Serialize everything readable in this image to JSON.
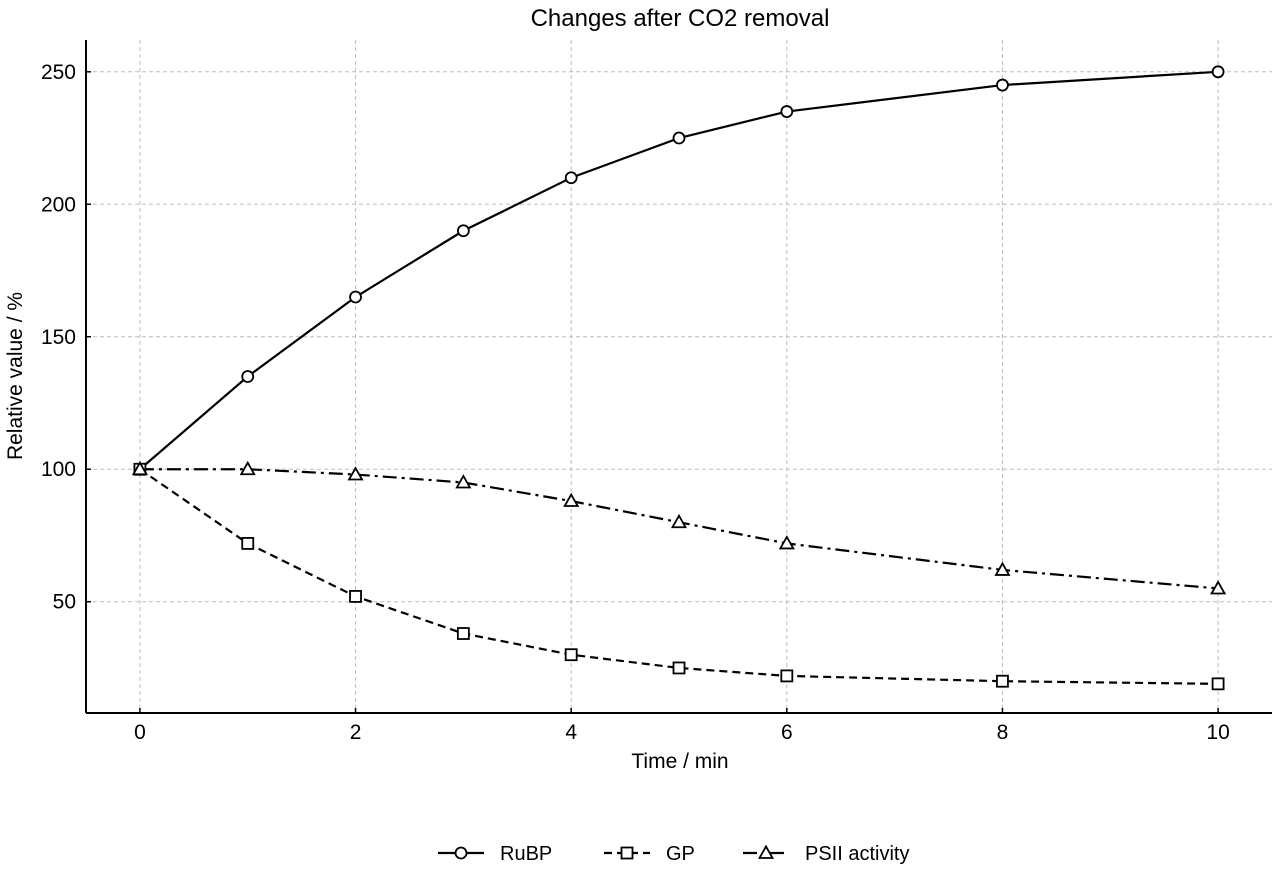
{
  "chart_data": {
    "type": "line",
    "title": "Changes after CO2 removal",
    "xlabel": "Time / min",
    "ylabel": "Relative value / %",
    "xlim": [
      -0.5,
      10.5
    ],
    "ylim": [
      8,
      262
    ],
    "xticks": [
      0,
      2,
      4,
      6,
      8,
      10
    ],
    "yticks": [
      50,
      100,
      150,
      200,
      250
    ],
    "grid": true,
    "legend_position": "bottom-center",
    "series": [
      {
        "name": "RuBP",
        "marker": "circle",
        "line_style": "solid",
        "x": [
          0,
          1,
          2,
          3,
          4,
          5,
          6,
          8,
          10
        ],
        "y": [
          100,
          135,
          165,
          190,
          210,
          225,
          235,
          245,
          250
        ]
      },
      {
        "name": "GP",
        "marker": "square",
        "line_style": "dashed",
        "x": [
          0,
          1,
          2,
          3,
          4,
          5,
          6,
          8,
          10
        ],
        "y": [
          100,
          72,
          52,
          38,
          30,
          25,
          22,
          20,
          19
        ]
      },
      {
        "name": "PSII activity",
        "marker": "triangle",
        "line_style": "dashdot",
        "x": [
          0,
          1,
          2,
          3,
          4,
          5,
          6,
          8,
          10
        ],
        "y": [
          100,
          100,
          98,
          95,
          88,
          80,
          72,
          62,
          55
        ]
      }
    ]
  }
}
